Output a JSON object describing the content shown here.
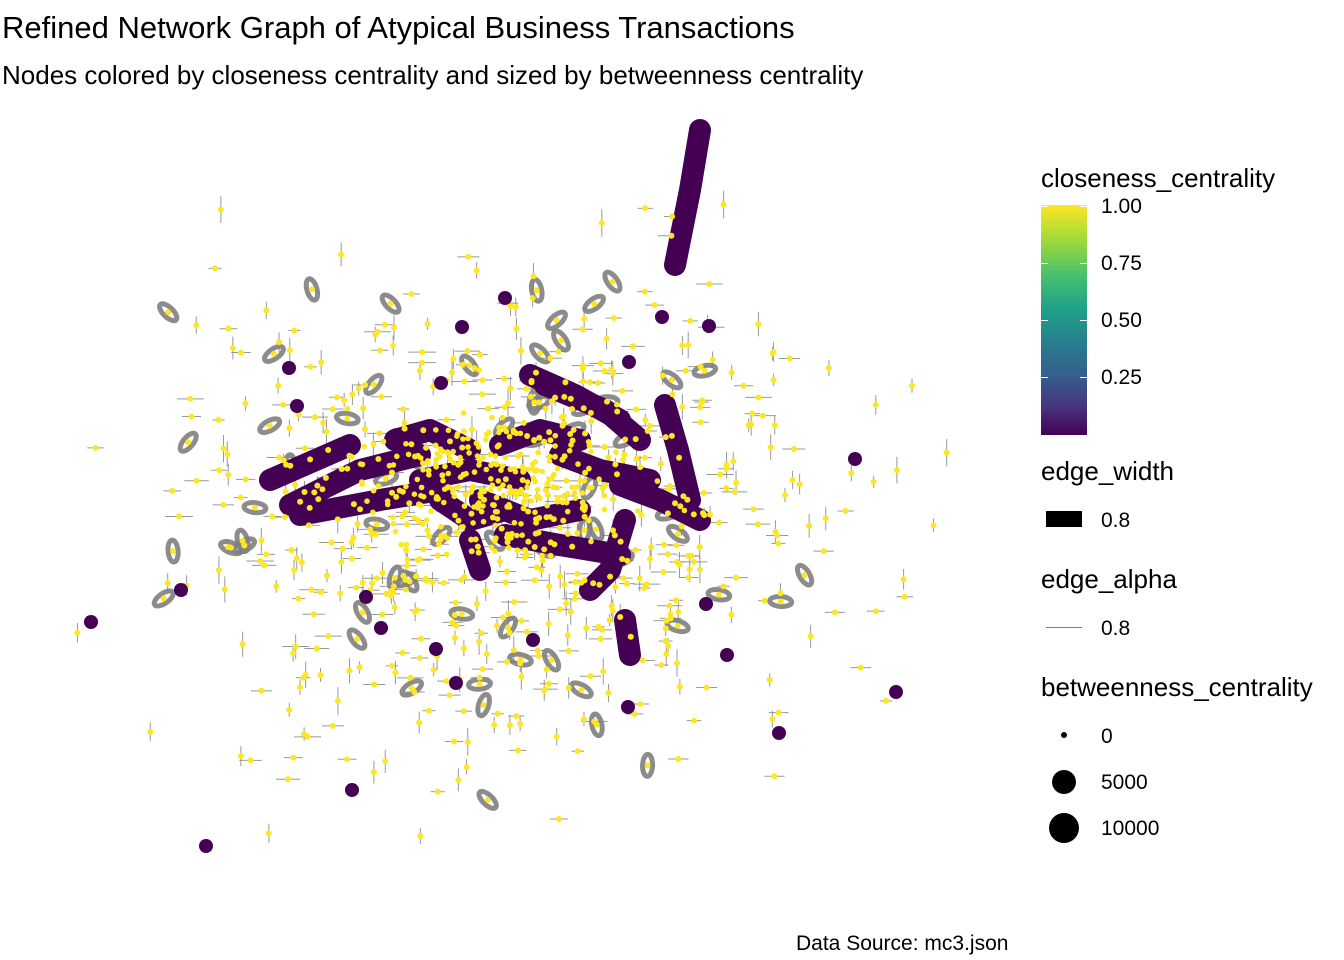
{
  "chart_data": {
    "type": "network",
    "title": "Refined Network Graph of Atypical Business Transactions",
    "subtitle": "Nodes colored by closeness centrality and sized by betweenness centrality",
    "caption": "Data Source: mc3.json",
    "grid": false,
    "legend_position": "right",
    "legends": {
      "color": {
        "title": "closeness_centrality",
        "range": [
          0,
          1
        ],
        "palette": "viridis",
        "ticks": [
          "1.00",
          "0.75",
          "0.50",
          "0.25"
        ]
      },
      "edge_width": {
        "title": "edge_width",
        "label": "0.8"
      },
      "edge_alpha": {
        "title": "edge_alpha",
        "label": "0.8"
      },
      "size": {
        "title": "betweenness_centrality",
        "values": [
          0,
          5000,
          10000
        ],
        "labels": [
          "0",
          "5000",
          "10000"
        ]
      }
    },
    "colors": {
      "low": "#440154",
      "high": "#fde725",
      "edge": "#808080"
    }
  }
}
